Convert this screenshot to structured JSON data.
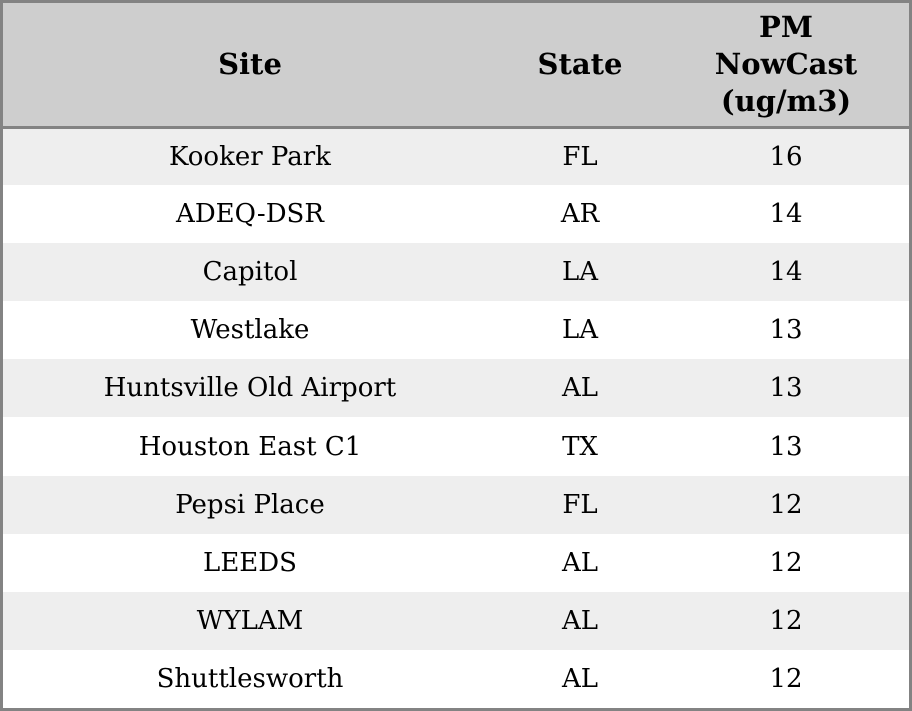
{
  "colors": {
    "outer_border": "#838383",
    "header_bg": "#cecece",
    "row_stripe": "#eeeeee",
    "row_plain": "#ffffff",
    "text": "#000000"
  },
  "table": {
    "columns": [
      {
        "id": "site",
        "label": "Site"
      },
      {
        "id": "state",
        "label": "State"
      },
      {
        "id": "pm",
        "label": "PM NowCast (ug/m3)"
      }
    ],
    "rows": [
      {
        "site": "Kooker Park",
        "state": "FL",
        "pm": "16"
      },
      {
        "site": "ADEQ-DSR",
        "state": "AR",
        "pm": "14"
      },
      {
        "site": "Capitol",
        "state": "LA",
        "pm": "14"
      },
      {
        "site": "Westlake",
        "state": "LA",
        "pm": "13"
      },
      {
        "site": "Huntsville Old Airport",
        "state": "AL",
        "pm": "13"
      },
      {
        "site": "Houston East C1",
        "state": "TX",
        "pm": "13"
      },
      {
        "site": "Pepsi Place",
        "state": "FL",
        "pm": "12"
      },
      {
        "site": "LEEDS",
        "state": "AL",
        "pm": "12"
      },
      {
        "site": "WYLAM",
        "state": "AL",
        "pm": "12"
      },
      {
        "site": "Shuttlesworth",
        "state": "AL",
        "pm": "12"
      }
    ]
  },
  "chart_data": {
    "type": "table",
    "title": "",
    "columns": [
      "Site",
      "State",
      "PM NowCast (ug/m3)"
    ],
    "rows": [
      [
        "Kooker Park",
        "FL",
        16
      ],
      [
        "ADEQ-DSR",
        "AR",
        14
      ],
      [
        "Capitol",
        "LA",
        14
      ],
      [
        "Westlake",
        "LA",
        13
      ],
      [
        "Huntsville Old Airport",
        "AL",
        13
      ],
      [
        "Houston East C1",
        "TX",
        13
      ],
      [
        "Pepsi Place",
        "FL",
        12
      ],
      [
        "LEEDS",
        "AL",
        12
      ],
      [
        "WYLAM",
        "AL",
        12
      ],
      [
        "Shuttlesworth",
        "AL",
        12
      ]
    ],
    "layout_hints": {
      "header_background": "#cecece",
      "stripe_background": "#eeeeee",
      "grid": "off",
      "column_alignment": [
        "center",
        "center",
        "center"
      ]
    }
  }
}
